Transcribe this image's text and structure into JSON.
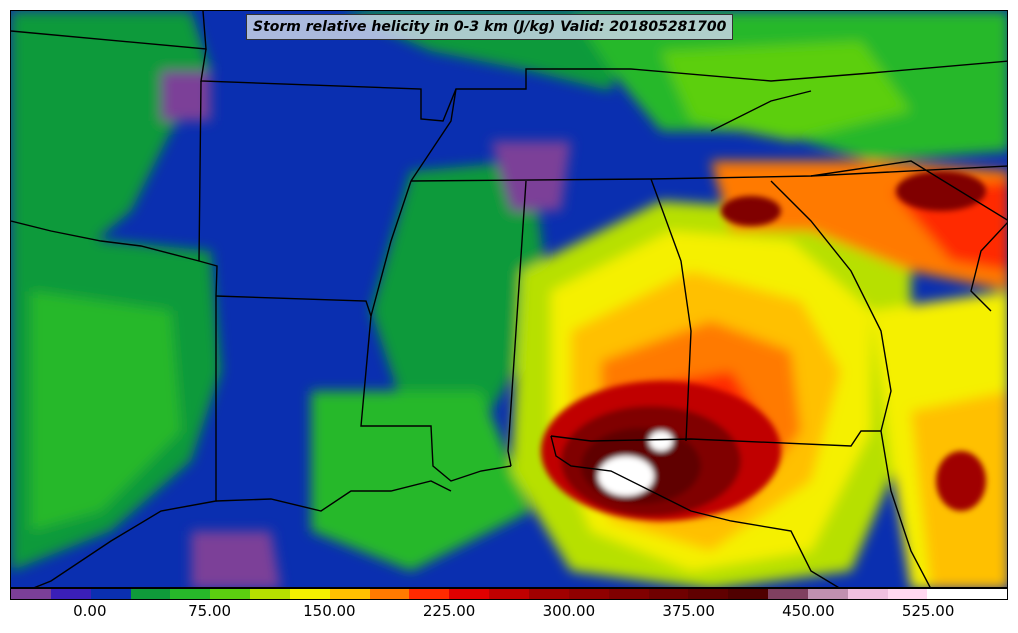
{
  "map": {
    "title": "Storm relative helicity in 0-3 km (J/kg) Valid: 201805281700"
  },
  "colorbar": {
    "colors": [
      "#7b3f98",
      "#3a1fb8",
      "#0a2fb0",
      "#0f9a3a",
      "#27b82a",
      "#5ccf10",
      "#b7e000",
      "#f5f000",
      "#ffc000",
      "#ff7a00",
      "#ff2a00",
      "#e00000",
      "#c00000",
      "#a00000",
      "#900000",
      "#800000",
      "#700000",
      "#600000",
      "#500000",
      "#804060",
      "#c090b0",
      "#f0c0e0",
      "#ffd8f0",
      "#ffffff",
      "#ffffff"
    ],
    "tick_labels": [
      "0.00",
      "75.00",
      "150.00",
      "225.00",
      "300.00",
      "375.00",
      "450.00",
      "525.00"
    ],
    "tick_values": [
      0,
      75,
      150,
      225,
      300,
      375,
      450,
      525
    ],
    "range": [
      -50,
      575
    ]
  }
}
